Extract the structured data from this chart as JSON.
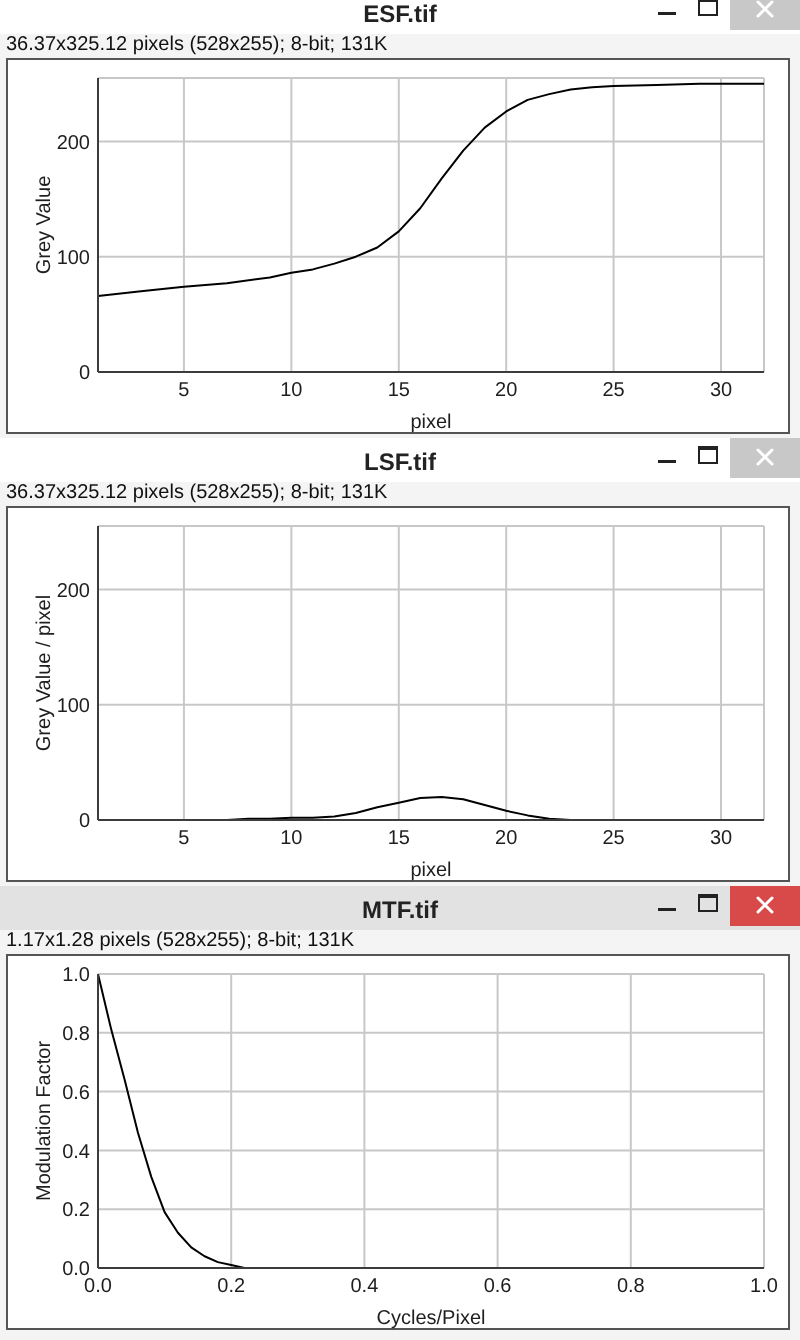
{
  "chart_data": [
    {
      "type": "line",
      "title": "ESF.tif",
      "subtitle": "36.37x325.12 pixels (528x255); 8-bit; 131K",
      "xlabel": "pixel",
      "ylabel": "Grey Value",
      "x": [
        1,
        3,
        5,
        7,
        9,
        10,
        11,
        12,
        13,
        14,
        15,
        16,
        17,
        18,
        19,
        20,
        21,
        22,
        23,
        24,
        25,
        27,
        29,
        32
      ],
      "values": [
        66,
        70,
        74,
        77,
        82,
        86,
        89,
        94,
        100,
        108,
        122,
        142,
        168,
        192,
        212,
        226,
        236,
        241,
        245,
        247,
        248,
        249,
        250,
        250
      ],
      "color": "#000000",
      "xlim": [
        1,
        32
      ],
      "ylim": [
        0,
        255
      ],
      "xticks": [
        5,
        10,
        15,
        20,
        25,
        30
      ],
      "yticks": [
        0,
        100,
        200
      ],
      "grid": true
    },
    {
      "type": "line",
      "title": "LSF.tif",
      "subtitle": "36.37x325.12 pixels (528x255); 8-bit; 131K",
      "xlabel": "pixel",
      "ylabel": "Grey Value / pixel",
      "x": [
        1,
        4,
        7,
        8,
        9,
        10,
        11,
        12,
        13,
        14,
        15,
        16,
        17,
        18,
        19,
        20,
        21,
        22,
        23,
        23.5
      ],
      "values": [
        0,
        0,
        0,
        1,
        1,
        2,
        2,
        3,
        6,
        11,
        15,
        19,
        20,
        18,
        13,
        8,
        4,
        1,
        0,
        0
      ],
      "color": "#000000",
      "xlim": [
        1,
        32
      ],
      "ylim": [
        0,
        255
      ],
      "xticks": [
        5,
        10,
        15,
        20,
        25,
        30
      ],
      "yticks": [
        0,
        100,
        200
      ],
      "grid": true
    },
    {
      "type": "line",
      "title": "MTF.tif",
      "subtitle": "1.17x1.28 pixels (528x255); 8-bit; 131K",
      "xlabel": "Cycles/Pixel",
      "ylabel": "Modulation Factor",
      "x": [
        0,
        0.02,
        0.04,
        0.06,
        0.08,
        0.1,
        0.12,
        0.14,
        0.16,
        0.18,
        0.2,
        0.22,
        0.27
      ],
      "values": [
        1,
        0.81,
        0.64,
        0.46,
        0.31,
        0.19,
        0.12,
        0.07,
        0.04,
        0.02,
        0.01,
        0,
        0
      ],
      "color": "#000000",
      "xlim": [
        0,
        1
      ],
      "ylim": [
        0,
        1
      ],
      "xticks": [
        {
          "value": 0,
          "label": "0.0"
        },
        0.2,
        0.4,
        0.6,
        0.8,
        {
          "value": 1,
          "label": "1.0"
        }
      ],
      "yticks": [
        {
          "value": 0,
          "label": "0.0"
        },
        0.2,
        0.4,
        0.6,
        0.8,
        {
          "value": 1,
          "label": "1.0"
        }
      ],
      "grid": true
    }
  ]
}
